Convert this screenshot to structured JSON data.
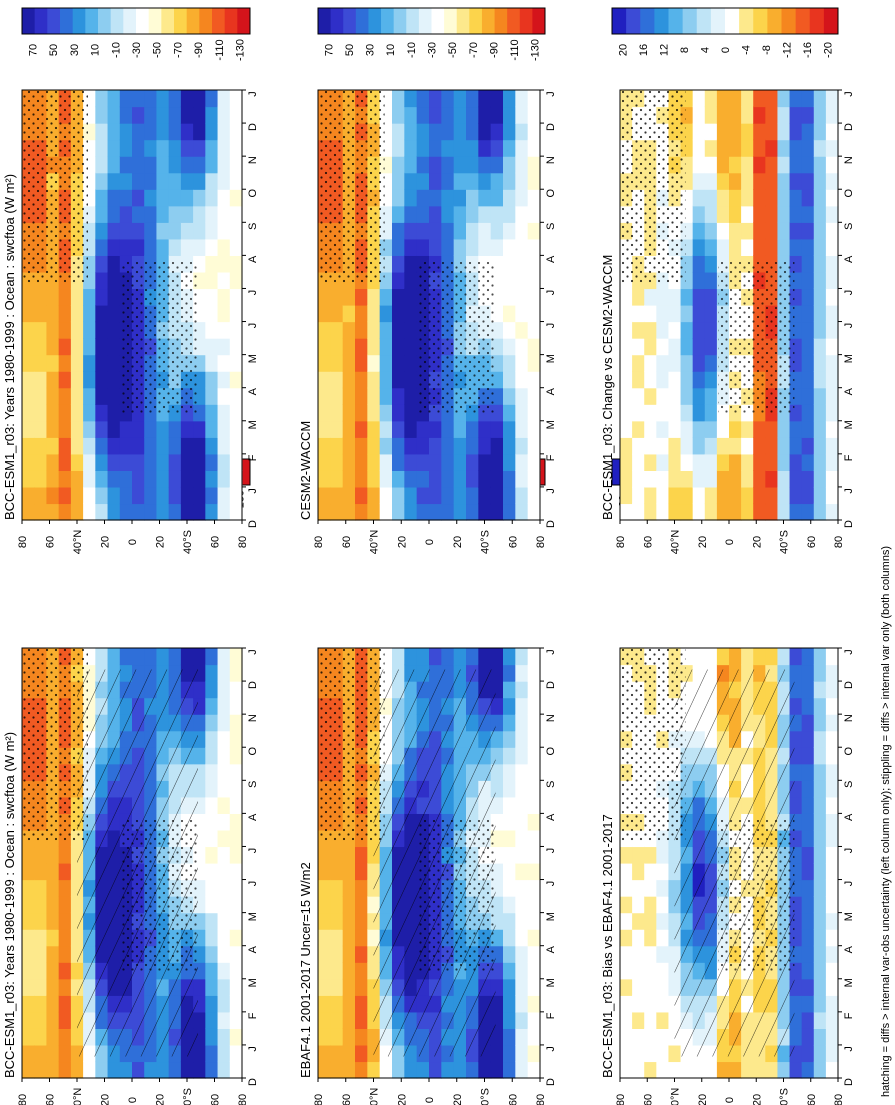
{
  "caption": "hatching = diffs > internal var-obs uncertainty (left column only); stippling = diffs > internal var only (both columns)",
  "months": [
    "D",
    "J",
    "F",
    "M",
    "A",
    "M",
    "J",
    "J",
    "A",
    "S",
    "O",
    "N",
    "D",
    "J"
  ],
  "lat_ticks": [
    "80",
    "60",
    "40°N",
    "20",
    "0",
    "20",
    "40°S",
    "60",
    "80"
  ],
  "colors": {
    "abs": [
      "#d4141b",
      "#e8351f",
      "#f15a22",
      "#f5861f",
      "#f9ae2e",
      "#fcd44b",
      "#fde98c",
      "#fffcd6",
      "#ffffff",
      "#e3f3fb",
      "#bfe4f6",
      "#8dcdf0",
      "#55b3ea",
      "#2d93dd",
      "#2f6fd9",
      "#3c4bd6",
      "#2f2fc8",
      "#1e1ea8"
    ],
    "diff": [
      "#d4141b",
      "#e8351f",
      "#f15a22",
      "#f5861f",
      "#f9ae2e",
      "#fcd44b",
      "#fde98c",
      "#ffffff",
      "#e3f3fb",
      "#bfe4f6",
      "#8dcdf0",
      "#55b3ea",
      "#2d93dd",
      "#2f6fd9",
      "#3c4bd6",
      "#2020c0"
    ]
  },
  "panels": [
    {
      "title": "BCC-ESM1_r03: Years 1980-1999 : Ocean : swcftoa (W m²)",
      "cbar": [
        "70",
        "50",
        "30",
        "10",
        "-10",
        "-30",
        "-50",
        "-70",
        "-90",
        "-110",
        "-130"
      ]
    },
    {
      "title": "EBAF4.1 2001-2017 Uncer=15 W/m2",
      "cbar": [
        "70",
        "50",
        "30",
        "10",
        "-10",
        "-30",
        "-50",
        "-70",
        "-90",
        "-110",
        "-130"
      ]
    },
    {
      "title": "BCC-ESM1_r03: Bias vs EBAF4.1 2001-2017",
      "cbar": [
        "20",
        "16",
        "12",
        "8",
        "4",
        "0",
        "-4",
        "-8",
        "-12",
        "-16",
        "-20"
      ]
    },
    {
      "title": "BCC-ESM1_r03: Years 1980-1999 : Ocean : swcftoa (W m²)",
      "cbar": [
        "70",
        "50",
        "30",
        "10",
        "-10",
        "-30",
        "-50",
        "-70",
        "-90",
        "-110",
        "-130"
      ]
    },
    {
      "title": "CESM2-WACCM",
      "cbar": [
        "70",
        "50",
        "30",
        "10",
        "-10",
        "-30",
        "-50",
        "-70",
        "-90",
        "-110",
        "-130"
      ]
    },
    {
      "title": "BCC-ESM1_r03: Change vs CESM2-WACCM",
      "cbar": [
        "20",
        "16",
        "12",
        "8",
        "4",
        "0",
        "-4",
        "-8",
        "-12",
        "-16",
        "-20"
      ]
    }
  ],
  "chart_data": [
    {
      "type": "heatmap",
      "title": "BCC-ESM1_r03: Years 1980-1999 : Ocean : swcftoa (W m²)",
      "x": [
        "D",
        "J",
        "F",
        "M",
        "A",
        "M",
        "J",
        "J",
        "A",
        "S",
        "O",
        "N",
        "D",
        "J"
      ],
      "y": [
        "80N",
        "60N",
        "40N",
        "20N",
        "0",
        "20S",
        "40S",
        "60S",
        "80S"
      ],
      "colorbar": [
        70,
        50,
        30,
        10,
        -10,
        -30,
        -50,
        -70,
        -90,
        -110,
        -130
      ]
    },
    {
      "type": "heatmap",
      "title": "EBAF4.1 2001-2017 Uncer=15 W/m2",
      "x": [
        "D",
        "J",
        "F",
        "M",
        "A",
        "M",
        "J",
        "J",
        "A",
        "S",
        "O",
        "N",
        "D",
        "J"
      ],
      "y": [
        "80N",
        "60N",
        "40N",
        "20N",
        "0",
        "20S",
        "40S",
        "60S",
        "80S"
      ],
      "colorbar": [
        70,
        50,
        30,
        10,
        -10,
        -30,
        -50,
        -70,
        -90,
        -110,
        -130
      ]
    },
    {
      "type": "heatmap",
      "title": "BCC-ESM1_r03: Bias vs EBAF4.1 2001-2017",
      "x": [
        "D",
        "J",
        "F",
        "M",
        "A",
        "M",
        "J",
        "J",
        "A",
        "S",
        "O",
        "N",
        "D",
        "J"
      ],
      "y": [
        "80N",
        "60N",
        "40N",
        "20N",
        "0",
        "20S",
        "40S",
        "60S",
        "80S"
      ],
      "colorbar": [
        20,
        16,
        12,
        8,
        4,
        0,
        -4,
        -8,
        -12,
        -16,
        -20
      ]
    },
    {
      "type": "heatmap",
      "title": "BCC-ESM1_r03: Years 1980-1999 : Ocean : swcftoa (W m²)",
      "x": [
        "D",
        "J",
        "F",
        "M",
        "A",
        "M",
        "J",
        "J",
        "A",
        "S",
        "O",
        "N",
        "D",
        "J"
      ],
      "y": [
        "80N",
        "60N",
        "40N",
        "20N",
        "0",
        "20S",
        "40S",
        "60S",
        "80S"
      ],
      "colorbar": [
        70,
        50,
        30,
        10,
        -10,
        -30,
        -50,
        -70,
        -90,
        -110,
        -130
      ]
    },
    {
      "type": "heatmap",
      "title": "CESM2-WACCM",
      "x": [
        "D",
        "J",
        "F",
        "M",
        "A",
        "M",
        "J",
        "J",
        "A",
        "S",
        "O",
        "N",
        "D",
        "J"
      ],
      "y": [
        "80N",
        "60N",
        "40N",
        "20N",
        "0",
        "20S",
        "40S",
        "60S",
        "80S"
      ],
      "colorbar": [
        70,
        50,
        30,
        10,
        -10,
        -30,
        -50,
        -70,
        -90,
        -110,
        -130
      ]
    },
    {
      "type": "heatmap",
      "title": "BCC-ESM1_r03: Change vs CESM2-WACCM",
      "x": [
        "D",
        "J",
        "F",
        "M",
        "A",
        "M",
        "J",
        "J",
        "A",
        "S",
        "O",
        "N",
        "D",
        "J"
      ],
      "y": [
        "80N",
        "60N",
        "40N",
        "20N",
        "0",
        "20S",
        "40S",
        "60S",
        "80S"
      ],
      "colorbar": [
        20,
        16,
        12,
        8,
        4,
        0,
        -4,
        -8,
        -12,
        -16,
        -20
      ]
    }
  ]
}
